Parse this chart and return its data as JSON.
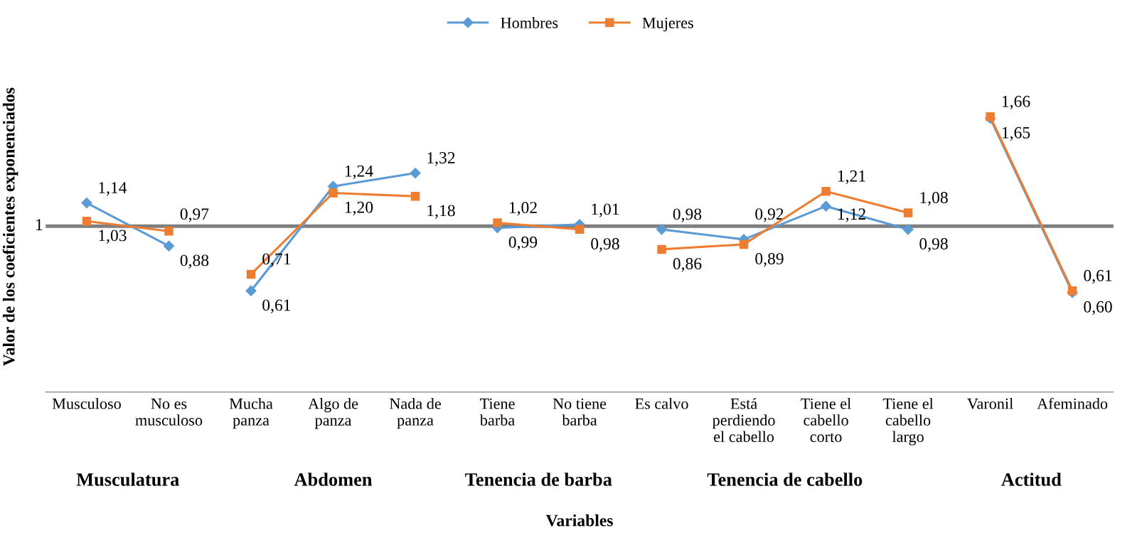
{
  "chart_data": {
    "type": "line",
    "xlabel": "Variables",
    "ylabel": "Valor de los coeficientes exponenciados",
    "categories": [
      "Musculoso",
      "No es\nmusculoso",
      "Mucha\npanza",
      "Algo de\npanza",
      "Nada de\npanza",
      "Tiene\nbarba",
      "No tiene\nbarba",
      "Es calvo",
      "Está\nperdiendo\nel cabello",
      "Tiene el\ncabello\ncorto",
      "Tiene el\ncabello\nlargo",
      "Varonil",
      "Afeminado"
    ],
    "series": [
      {
        "name": "Hombres",
        "color": "#5b9bd5",
        "marker": "diamond",
        "x": [
          "Musculoso",
          "No es\nmusculoso"
        ],
        "values": [
          1.14,
          0.88
        ],
        "value_labels": [
          "1,14",
          "0,88"
        ]
      },
      {
        "name": "Mujeres",
        "color": "#ed7d31",
        "marker": "square",
        "x": [
          "Musculoso",
          "No es\nmusculoso"
        ],
        "values": [
          1.03,
          0.97
        ],
        "value_labels": [
          "1,03",
          "0,97"
        ]
      },
      {
        "color": "#5b9bd5",
        "marker": "diamond",
        "x": [
          "Mucha\npanza",
          "Algo de\npanza",
          "Nada de\npanza"
        ],
        "values": [
          0.61,
          1.24,
          1.32
        ],
        "value_labels": [
          "0,61",
          "1,24",
          "1,32"
        ]
      },
      {
        "color": "#ed7d31",
        "marker": "square",
        "x": [
          "Mucha\npanza",
          "Algo de\npanza",
          "Nada de\npanza"
        ],
        "values": [
          0.71,
          1.2,
          1.18
        ],
        "value_labels": [
          "0,71",
          "1,20",
          "1,18"
        ]
      },
      {
        "color": "#5b9bd5",
        "marker": "diamond",
        "x": [
          "Tiene\nbarba",
          "No tiene\nbarba"
        ],
        "values": [
          0.99,
          1.01
        ],
        "value_labels": [
          "0,99",
          "1,01"
        ]
      },
      {
        "color": "#ed7d31",
        "marker": "square",
        "x": [
          "Tiene\nbarba",
          "No tiene\nbarba"
        ],
        "values": [
          1.02,
          0.98
        ],
        "value_labels": [
          "1,02",
          "0,98"
        ]
      },
      {
        "color": "#5b9bd5",
        "marker": "diamond",
        "x": [
          "Es calvo",
          "Está\nperdiendo\nel cabello",
          "Tiene el\ncabello\ncorto",
          "Tiene el\ncabello\nlargo"
        ],
        "values": [
          0.98,
          0.92,
          1.12,
          0.98
        ],
        "value_labels": [
          "0,98",
          "0,92",
          "1,12",
          "0,98"
        ]
      },
      {
        "color": "#ed7d31",
        "marker": "square",
        "x": [
          "Es calvo",
          "Está\nperdiendo\nel cabello",
          "Tiene el\ncabello\ncorto",
          "Tiene el\ncabello\nlargo"
        ],
        "values": [
          0.86,
          0.89,
          1.21,
          1.08
        ],
        "value_labels": [
          "0,86",
          "0,89",
          "1,21",
          "1,08"
        ]
      },
      {
        "color": "#5b9bd5",
        "marker": "diamond",
        "x": [
          "Varonil",
          "Afeminado"
        ],
        "values": [
          1.65,
          0.6
        ],
        "value_labels": [
          "1,65",
          "0,60"
        ]
      },
      {
        "color": "#ed7d31",
        "marker": "square",
        "x": [
          "Varonil",
          "Afeminado"
        ],
        "values": [
          1.66,
          0.61
        ],
        "value_labels": [
          "1,66",
          "0,61"
        ]
      }
    ],
    "annotations": [
      "Musculatura",
      "Abdomen",
      "Tenencia de barba",
      "Tenencia de cabello",
      "Actitud"
    ],
    "ref_lines": [
      {
        "axis": "y",
        "value": 1,
        "label": "1",
        "color": "#7f7f7f"
      }
    ],
    "grid": false,
    "legend": "top",
    "line_style": "solid"
  }
}
